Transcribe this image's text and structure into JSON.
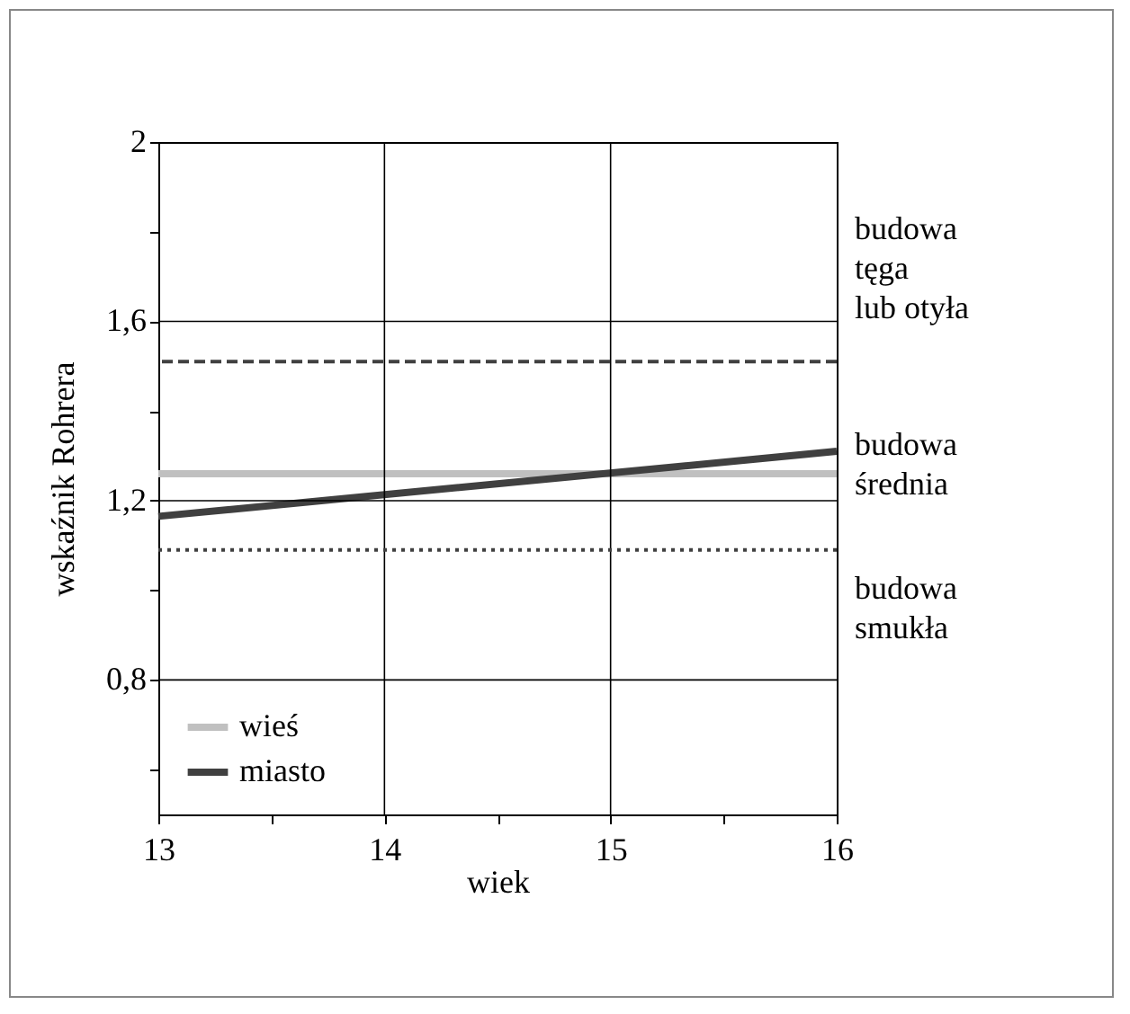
{
  "chart_data": {
    "type": "line",
    "xlabel": "wiek",
    "ylabel": "wskaźnik Rohrera",
    "x": [
      13,
      16
    ],
    "series": [
      {
        "name": "wieś",
        "color": "#c0c0c0",
        "values": [
          1.26,
          1.26
        ]
      },
      {
        "name": "miasto",
        "color": "#404040",
        "values": [
          1.165,
          1.31
        ]
      }
    ],
    "xlim": [
      13,
      16
    ],
    "xticks": [
      13,
      {
        "value": 13.5,
        "label": null
      },
      14,
      {
        "value": 14.5,
        "label": null
      },
      15,
      {
        "value": 15.5,
        "label": null
      },
      16
    ],
    "ylim": [
      0.5,
      2
    ],
    "yticks": [
      {
        "value": 0.6,
        "label": null
      },
      {
        "value": 0.8,
        "label": "0,8"
      },
      {
        "value": 1.0,
        "label": null
      },
      {
        "value": 1.2,
        "label": "1,2"
      },
      {
        "value": 1.4,
        "label": null
      },
      {
        "value": 1.6,
        "label": "1,6"
      },
      {
        "value": 1.8,
        "label": null
      },
      {
        "value": 2,
        "label": "2"
      }
    ],
    "ref_lines": [
      {
        "axis": "y",
        "value": 1.51,
        "line_style": "dashed",
        "color": "#404040"
      },
      {
        "axis": "y",
        "value": 1.09,
        "line_style": "dotted",
        "color": "#404040"
      }
    ],
    "annotations": [
      "budowa\ntęga\nlub otyła",
      "budowa\nśrednia",
      "budowa\nsmukła"
    ],
    "grid": true,
    "legend": "bottom left",
    "line_style": "solid"
  }
}
